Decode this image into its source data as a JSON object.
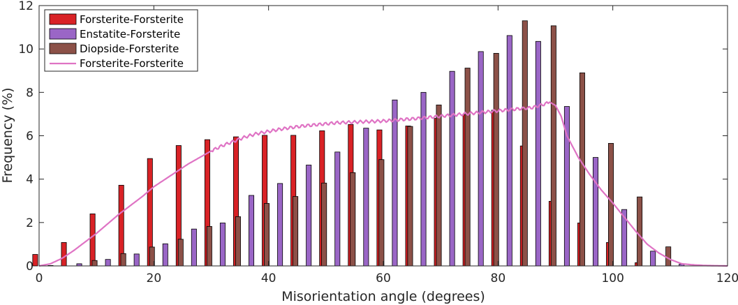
{
  "chart_data": {
    "type": "bar",
    "x": [
      2,
      7,
      12,
      17,
      22,
      27,
      32,
      37,
      42,
      47,
      52,
      57,
      62,
      67,
      72,
      77,
      82,
      87,
      92,
      97,
      102,
      107,
      112,
      117
    ],
    "x_tick_values": [
      0,
      20,
      40,
      60,
      80,
      100,
      120
    ],
    "x_tick_labels": [
      "0",
      "20",
      "40",
      "60",
      "80",
      "100",
      "120"
    ],
    "y_tick_values": [
      0,
      2,
      4,
      6,
      8,
      10,
      12
    ],
    "y_tick_labels": [
      "0",
      "2",
      "4",
      "6",
      "8",
      "10",
      "12"
    ],
    "xlabel": "Misorientation angle (degrees)",
    "ylabel": "Frequency (%)",
    "xlim": [
      0,
      120
    ],
    "ylim": [
      0,
      12
    ],
    "grid": false,
    "legend_position": "top-left",
    "series": [
      {
        "name": "Forsterite-Forsterite",
        "kind": "bar",
        "color": "#d92226",
        "values": [
          0.53,
          1.08,
          2.4,
          3.72,
          4.95,
          5.55,
          5.82,
          5.95,
          6.02,
          6.02,
          6.23,
          6.52,
          6.27,
          6.45,
          6.8,
          6.97,
          7.18,
          5.53,
          2.98,
          1.98,
          1.08,
          0.15,
          0,
          0
        ]
      },
      {
        "name": "Enstatite-Forsterite",
        "kind": "bar",
        "color": "#9a66c6",
        "values": [
          0.02,
          0.1,
          0.3,
          0.55,
          1.02,
          1.7,
          1.98,
          3.25,
          3.8,
          4.65,
          5.25,
          6.35,
          7.65,
          8.0,
          8.97,
          9.88,
          10.62,
          10.35,
          7.35,
          5.0,
          2.6,
          0.68,
          0.08,
          0
        ]
      },
      {
        "name": "Diopside-Forsterite",
        "kind": "bar",
        "color": "#8c5148",
        "values": [
          0,
          0.25,
          0.57,
          0.87,
          1.23,
          1.82,
          2.27,
          2.88,
          3.2,
          3.82,
          4.3,
          4.9,
          6.43,
          7.42,
          9.12,
          9.8,
          11.3,
          11.07,
          8.9,
          5.65,
          3.18,
          0.88,
          0,
          0
        ]
      },
      {
        "name": "Forsterite-Forsterite",
        "kind": "line",
        "color": "#df73c4",
        "x": [
          0,
          2,
          4,
          6,
          8,
          10,
          12,
          14,
          16,
          18,
          20,
          22,
          24,
          26,
          28,
          30,
          32,
          34,
          36,
          38,
          40,
          42,
          44,
          46,
          48,
          50,
          52,
          54,
          56,
          58,
          60,
          62,
          64,
          66,
          68,
          70,
          72,
          74,
          76,
          78,
          80,
          82,
          84,
          86,
          88,
          89,
          90,
          91,
          92,
          94,
          96,
          98,
          100,
          102,
          104,
          106,
          108,
          110,
          112,
          114,
          116,
          118,
          120
        ],
        "values": [
          0,
          0.1,
          0.35,
          0.7,
          1.1,
          1.5,
          1.95,
          2.4,
          2.8,
          3.2,
          3.65,
          4.0,
          4.35,
          4.7,
          5.0,
          5.3,
          5.55,
          5.75,
          5.95,
          6.1,
          6.2,
          6.3,
          6.38,
          6.45,
          6.5,
          6.55,
          6.6,
          6.62,
          6.64,
          6.66,
          6.68,
          6.72,
          6.76,
          6.8,
          6.85,
          6.9,
          6.95,
          7.0,
          7.05,
          7.1,
          7.15,
          7.2,
          7.25,
          7.3,
          7.45,
          7.55,
          7.4,
          6.9,
          6.0,
          5.0,
          4.2,
          3.5,
          2.9,
          2.25,
          1.6,
          1.0,
          0.6,
          0.3,
          0.1,
          0.05,
          0.02,
          0.01,
          0
        ]
      }
    ]
  }
}
